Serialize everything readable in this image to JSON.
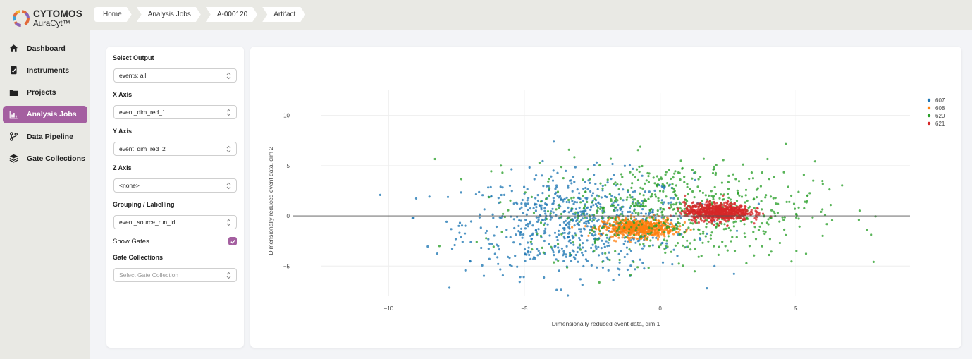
{
  "app": {
    "brand": "CYTOMOS",
    "product": "AuraCyt™"
  },
  "sidebar": {
    "items": [
      {
        "label": "Dashboard",
        "icon": "home-icon",
        "active": false
      },
      {
        "label": "Instruments",
        "icon": "instrument-icon",
        "active": false
      },
      {
        "label": "Projects",
        "icon": "folder-icon",
        "active": false
      },
      {
        "label": "Analysis Jobs",
        "icon": "chart-icon",
        "active": true
      },
      {
        "label": "Data Pipeline",
        "icon": "pipeline-icon",
        "active": false
      },
      {
        "label": "Gate Collections",
        "icon": "layers-icon",
        "active": false
      }
    ]
  },
  "breadcrumb": [
    "Home",
    "Analysis Jobs",
    "A-000120",
    "Artifact"
  ],
  "panel": {
    "select_output": {
      "label": "Select Output",
      "value": "events: all"
    },
    "x_axis": {
      "label": "X Axis",
      "value": "event_dim_red_1"
    },
    "y_axis": {
      "label": "Y Axis",
      "value": "event_dim_red_2"
    },
    "z_axis": {
      "label": "Z Axis",
      "value": "<none>"
    },
    "grouping": {
      "label": "Grouping / Labelling",
      "value": "event_source_run_id"
    },
    "show_gates": {
      "label": "Show Gates",
      "checked": true
    },
    "gate_collections": {
      "label": "Gate Collections",
      "placeholder": "Select Gate Collection"
    }
  },
  "colors": {
    "accent": "#a45fa0",
    "series_607": "#1f77b4",
    "series_608": "#ff7f0e",
    "series_620": "#2ca02c",
    "series_621": "#d62728"
  },
  "chart_data": {
    "type": "scatter",
    "xlabel": "Dimensionally reduced event data, dim 1",
    "ylabel": "Dimensionally reduced event data, dim 2",
    "xlim": [
      -12.5,
      9.2
    ],
    "ylim": [
      -8.0,
      12.5
    ],
    "xticks": [
      -10,
      -5,
      0,
      5
    ],
    "yticks": [
      -5,
      0,
      5,
      10
    ],
    "legend_position": "top-right",
    "series": [
      {
        "name": "607",
        "color": "#1f77b4",
        "center": [
          -3.0,
          -0.8
        ],
        "spread": [
          2.1,
          2.5
        ],
        "count": 720
      },
      {
        "name": "608",
        "color": "#ff7f0e",
        "center": [
          -0.8,
          -1.2
        ],
        "spread": [
          0.65,
          0.45
        ],
        "count": 650
      },
      {
        "name": "620",
        "color": "#2ca02c",
        "center": [
          0.5,
          0.6
        ],
        "spread": [
          2.6,
          2.4
        ],
        "count": 680
      },
      {
        "name": "621",
        "color": "#d62728",
        "center": [
          2.1,
          0.4
        ],
        "spread": [
          0.6,
          0.45
        ],
        "count": 720
      }
    ]
  }
}
